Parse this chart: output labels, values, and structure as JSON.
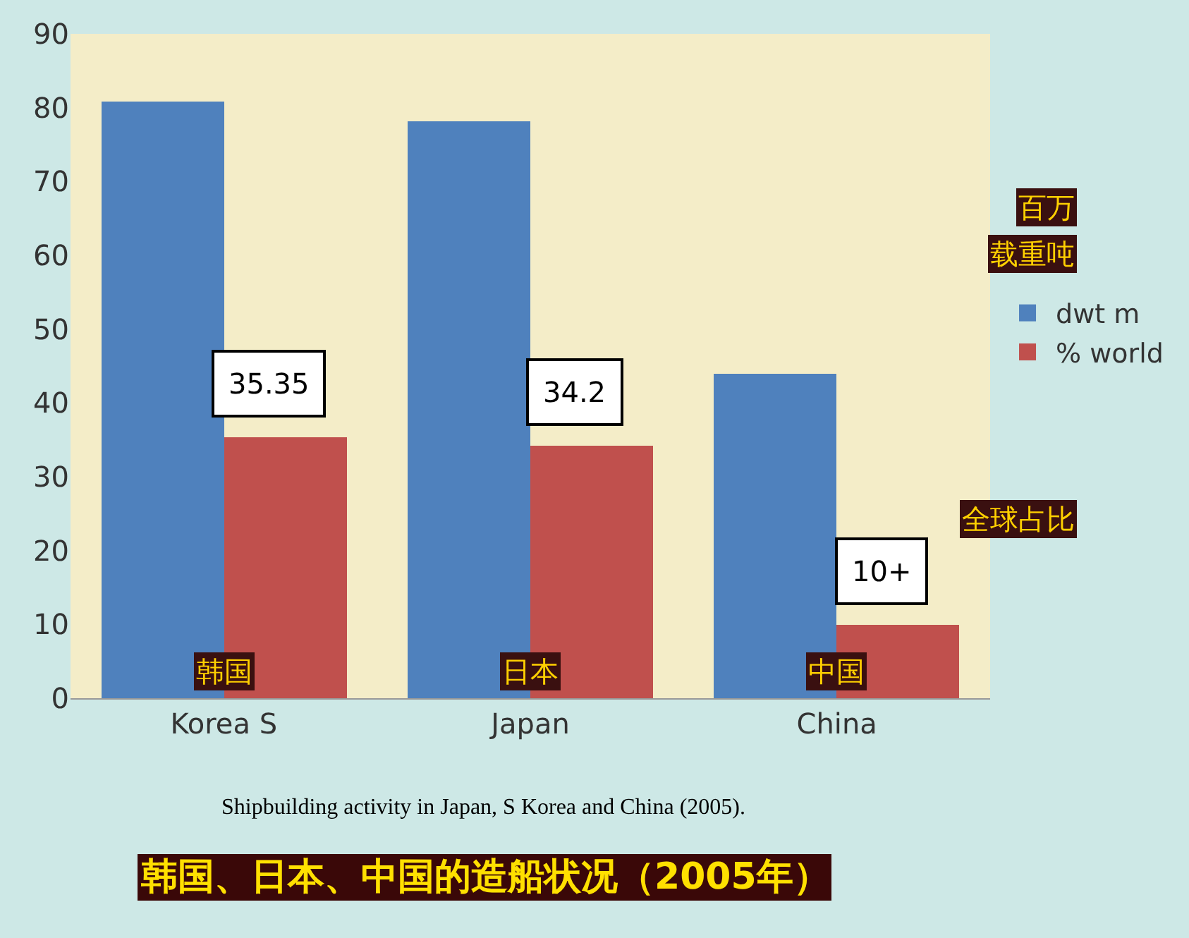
{
  "chart_data": {
    "type": "bar",
    "title": "韩国、日本、中国的造船状况（2005年）",
    "categories": [
      "Korea S",
      "Japan",
      "China"
    ],
    "series": [
      {
        "name": "dwt m",
        "color": "#4f81bd",
        "values": [
          80.8,
          78.2,
          43.9
        ]
      },
      {
        "name": "% world",
        "color": "#c0504d",
        "values": [
          35.35,
          34.2,
          10
        ],
        "value_labels": [
          "35.35",
          "34.2",
          "10+"
        ]
      }
    ],
    "ylim": [
      0,
      90
    ],
    "yticks": [
      0,
      10,
      20,
      30,
      40,
      50,
      60,
      70,
      80,
      90
    ],
    "grid": false,
    "legend": "right",
    "annotations": [
      {
        "text": "韩国",
        "x": "Korea S",
        "y": 1
      },
      {
        "text": "日本",
        "x": "Japan",
        "y": 1
      },
      {
        "text": "中国",
        "x": "China",
        "y": 1
      },
      "百万",
      "载重吨",
      "全球占比",
      "Shipbuilding activity in Japan, S Korea and China (2005)."
    ]
  }
}
